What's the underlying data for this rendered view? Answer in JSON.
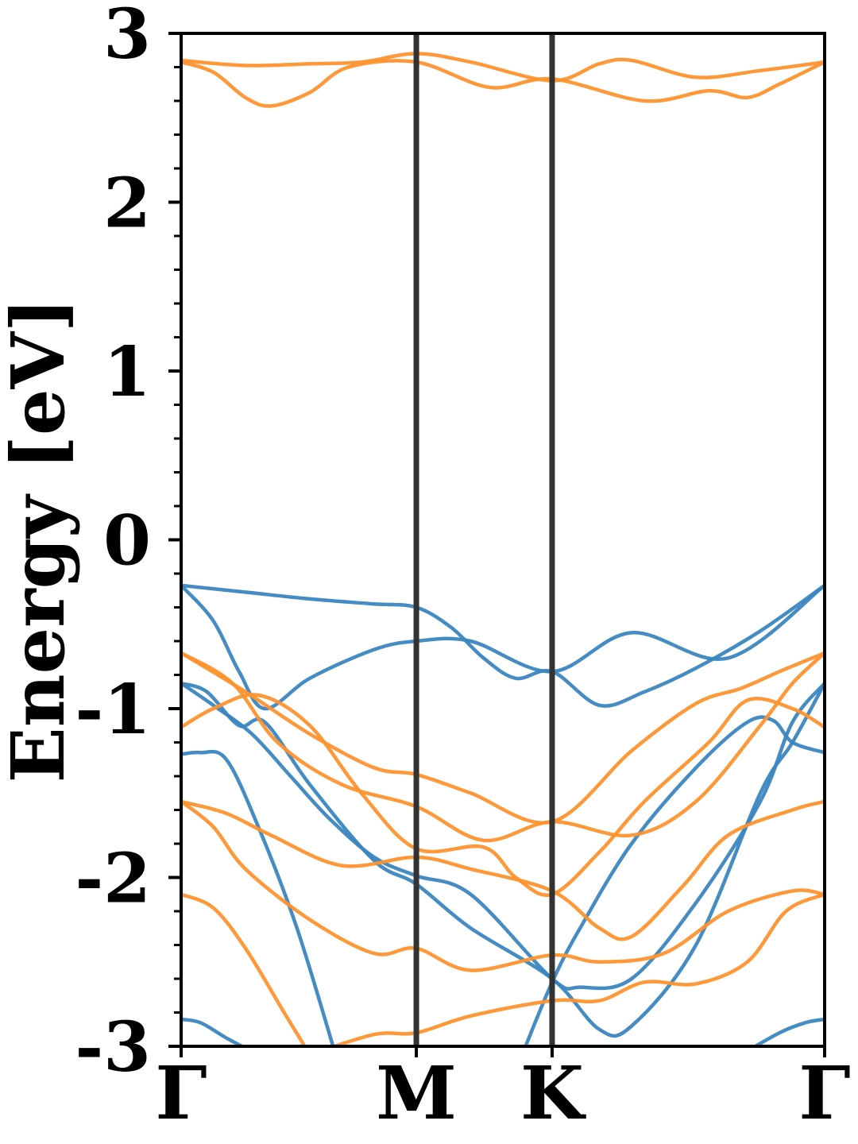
{
  "chart_data": {
    "type": "line",
    "ylabel": "Energy [eV]",
    "xlabel": "",
    "ylim": [
      -3,
      3
    ],
    "x_range": [
      0,
      1
    ],
    "grid": false,
    "legend": "none",
    "y_ticks": [
      -3,
      -2,
      -1,
      0,
      1,
      2,
      3
    ],
    "y_tick_labels": [
      "-3",
      "-2",
      "-1",
      "0",
      "1",
      "2",
      "3"
    ],
    "y_minor_step": 0.2,
    "high_symmetry_points": [
      {
        "label": "Γ",
        "x": 0.0
      },
      {
        "label": "M",
        "x": 0.3655
      },
      {
        "label": "K",
        "x": 0.5765
      },
      {
        "label": "Γ",
        "x": 1.0
      }
    ],
    "colors": {
      "spin_up": "#3a86c0",
      "spin_down": "#ff922d",
      "divider": "#333333"
    },
    "series": [
      {
        "group": "spin_up",
        "points": [
          [
            0,
            -0.27
          ],
          [
            0.1,
            -0.31
          ],
          [
            0.2,
            -0.35
          ],
          [
            0.3,
            -0.38
          ],
          [
            0.3655,
            -0.4
          ],
          [
            0.42,
            -0.52
          ],
          [
            0.47,
            -0.7
          ],
          [
            0.52,
            -0.82
          ],
          [
            0.5765,
            -0.78
          ],
          [
            0.65,
            -0.98
          ],
          [
            0.72,
            -0.9
          ],
          [
            0.8,
            -0.76
          ],
          [
            0.9,
            -0.54
          ],
          [
            1.0,
            -0.27
          ]
        ]
      },
      {
        "group": "spin_up",
        "points": [
          [
            0,
            -0.27
          ],
          [
            0.05,
            -0.48
          ],
          [
            0.09,
            -0.78
          ],
          [
            0.13,
            -1.0
          ],
          [
            0.2,
            -0.82
          ],
          [
            0.3,
            -0.65
          ],
          [
            0.3655,
            -0.6
          ],
          [
            0.45,
            -0.6
          ],
          [
            0.5765,
            -0.78
          ],
          [
            0.7,
            -0.55
          ],
          [
            0.85,
            -0.7
          ],
          [
            1.0,
            -0.27
          ]
        ]
      },
      {
        "group": "spin_up",
        "points": [
          [
            0,
            -0.85
          ],
          [
            0.05,
            -0.98
          ],
          [
            0.11,
            -1.15
          ],
          [
            0.17,
            -1.4
          ],
          [
            0.23,
            -1.65
          ],
          [
            0.3,
            -1.88
          ],
          [
            0.3655,
            -1.99
          ],
          [
            0.45,
            -2.1
          ],
          [
            0.5765,
            -2.6
          ],
          [
            0.62,
            -2.65
          ],
          [
            0.7,
            -2.6
          ],
          [
            0.8,
            -2.15
          ],
          [
            0.9,
            -1.55
          ],
          [
            0.95,
            -1.08
          ],
          [
            1.0,
            -0.85
          ]
        ]
      },
      {
        "group": "spin_up",
        "points": [
          [
            0,
            -0.85
          ],
          [
            0.04,
            -0.9
          ],
          [
            0.09,
            -1.1
          ],
          [
            0.13,
            -1.08
          ],
          [
            0.2,
            -1.45
          ],
          [
            0.3,
            -1.9
          ],
          [
            0.3655,
            -2.04
          ],
          [
            0.45,
            -2.3
          ],
          [
            0.5765,
            -2.6
          ],
          [
            0.65,
            -2.9
          ],
          [
            0.7,
            -2.88
          ],
          [
            0.8,
            -2.4
          ],
          [
            0.9,
            -1.5
          ],
          [
            0.95,
            -1.2
          ],
          [
            1.0,
            -0.85
          ]
        ]
      },
      {
        "group": "spin_up",
        "points": [
          [
            0,
            -1.27
          ],
          [
            0.03,
            -1.26
          ],
          [
            0.07,
            -1.3
          ],
          [
            0.12,
            -1.7
          ],
          [
            0.18,
            -2.3
          ],
          [
            0.24,
            -3.05
          ]
        ]
      },
      {
        "group": "spin_up",
        "points": [
          [
            0.53,
            -3.05
          ],
          [
            0.5765,
            -2.62
          ],
          [
            0.62,
            -2.3
          ],
          [
            0.7,
            -1.8
          ],
          [
            0.8,
            -1.35
          ],
          [
            0.88,
            -1.08
          ],
          [
            0.92,
            -1.07
          ],
          [
            0.95,
            -1.2
          ],
          [
            1.0,
            -1.26
          ]
        ]
      },
      {
        "group": "spin_up",
        "points": [
          [
            0,
            -2.84
          ],
          [
            0.03,
            -2.86
          ],
          [
            0.07,
            -2.95
          ],
          [
            0.12,
            -3.05
          ]
        ]
      },
      {
        "group": "spin_up",
        "points": [
          [
            0.87,
            -3.05
          ],
          [
            0.93,
            -2.92
          ],
          [
            0.97,
            -2.86
          ],
          [
            1.0,
            -2.84
          ]
        ]
      },
      {
        "group": "spin_down",
        "points": [
          [
            0,
            2.83
          ],
          [
            0.05,
            2.77
          ],
          [
            0.1,
            2.62
          ],
          [
            0.14,
            2.57
          ],
          [
            0.2,
            2.65
          ],
          [
            0.26,
            2.8
          ],
          [
            0.3655,
            2.83
          ],
          [
            0.48,
            2.68
          ],
          [
            0.5765,
            2.73
          ],
          [
            0.72,
            2.6
          ],
          [
            0.82,
            2.66
          ],
          [
            0.88,
            2.62
          ],
          [
            0.93,
            2.7
          ],
          [
            1.0,
            2.83
          ]
        ]
      },
      {
        "group": "spin_down",
        "points": [
          [
            0,
            2.84
          ],
          [
            0.1,
            2.81
          ],
          [
            0.2,
            2.82
          ],
          [
            0.28,
            2.83
          ],
          [
            0.3655,
            2.88
          ],
          [
            0.45,
            2.83
          ],
          [
            0.5765,
            2.72
          ],
          [
            0.65,
            2.82
          ],
          [
            0.7,
            2.84
          ],
          [
            0.8,
            2.74
          ],
          [
            0.9,
            2.78
          ],
          [
            1.0,
            2.83
          ]
        ]
      },
      {
        "group": "spin_down",
        "points": [
          [
            0,
            -0.67
          ],
          [
            0.1,
            -0.9
          ],
          [
            0.2,
            -1.15
          ],
          [
            0.3,
            -1.35
          ],
          [
            0.3655,
            -1.39
          ],
          [
            0.45,
            -1.5
          ],
          [
            0.5765,
            -1.67
          ],
          [
            0.7,
            -1.25
          ],
          [
            0.8,
            -0.97
          ],
          [
            0.87,
            -0.88
          ],
          [
            0.93,
            -0.78
          ],
          [
            1.0,
            -0.67
          ]
        ]
      },
      {
        "group": "spin_down",
        "points": [
          [
            0,
            -0.67
          ],
          [
            0.08,
            -0.85
          ],
          [
            0.15,
            -1.2
          ],
          [
            0.25,
            -1.45
          ],
          [
            0.3655,
            -1.58
          ],
          [
            0.47,
            -1.78
          ],
          [
            0.5765,
            -1.67
          ],
          [
            0.7,
            -1.75
          ],
          [
            0.8,
            -1.55
          ],
          [
            0.9,
            -1.1
          ],
          [
            0.95,
            -0.85
          ],
          [
            1.0,
            -0.67
          ]
        ]
      },
      {
        "group": "spin_down",
        "points": [
          [
            0,
            -1.11
          ],
          [
            0.05,
            -1.0
          ],
          [
            0.12,
            -0.92
          ],
          [
            0.2,
            -1.1
          ],
          [
            0.28,
            -1.5
          ],
          [
            0.3655,
            -1.83
          ],
          [
            0.47,
            -1.82
          ],
          [
            0.52,
            -2.0
          ],
          [
            0.5765,
            -2.1
          ],
          [
            0.65,
            -1.85
          ],
          [
            0.72,
            -1.55
          ],
          [
            0.82,
            -1.2
          ],
          [
            0.88,
            -0.95
          ],
          [
            0.95,
            -1.0
          ],
          [
            1.0,
            -1.11
          ]
        ]
      },
      {
        "group": "spin_down",
        "points": [
          [
            0,
            -1.55
          ],
          [
            0.07,
            -1.62
          ],
          [
            0.14,
            -1.75
          ],
          [
            0.25,
            -1.93
          ],
          [
            0.3655,
            -1.88
          ],
          [
            0.45,
            -1.95
          ],
          [
            0.5765,
            -2.08
          ],
          [
            0.65,
            -2.3
          ],
          [
            0.7,
            -2.35
          ],
          [
            0.78,
            -2.05
          ],
          [
            0.85,
            -1.75
          ],
          [
            0.95,
            -1.6
          ],
          [
            1.0,
            -1.55
          ]
        ]
      },
      {
        "group": "spin_down",
        "points": [
          [
            0,
            -1.55
          ],
          [
            0.05,
            -1.7
          ],
          [
            0.1,
            -1.95
          ],
          [
            0.2,
            -2.25
          ],
          [
            0.3,
            -2.45
          ],
          [
            0.3655,
            -2.42
          ],
          [
            0.45,
            -2.55
          ],
          [
            0.5765,
            -2.46
          ],
          [
            0.65,
            -2.5
          ],
          [
            0.75,
            -2.45
          ],
          [
            0.85,
            -2.2
          ],
          [
            0.95,
            -2.08
          ],
          [
            1.0,
            -2.1
          ]
        ]
      },
      {
        "group": "spin_down",
        "points": [
          [
            0,
            -2.1
          ],
          [
            0.05,
            -2.18
          ],
          [
            0.1,
            -2.42
          ],
          [
            0.16,
            -2.8
          ],
          [
            0.2,
            -3.05
          ]
        ]
      },
      {
        "group": "spin_down",
        "points": [
          [
            0.2,
            -3.05
          ],
          [
            0.3,
            -2.93
          ],
          [
            0.3655,
            -2.92
          ],
          [
            0.45,
            -2.82
          ],
          [
            0.5765,
            -2.73
          ],
          [
            0.65,
            -2.73
          ],
          [
            0.72,
            -2.62
          ],
          [
            0.8,
            -2.63
          ],
          [
            0.88,
            -2.5
          ],
          [
            0.94,
            -2.2
          ],
          [
            1.0,
            -2.1
          ]
        ]
      }
    ]
  }
}
